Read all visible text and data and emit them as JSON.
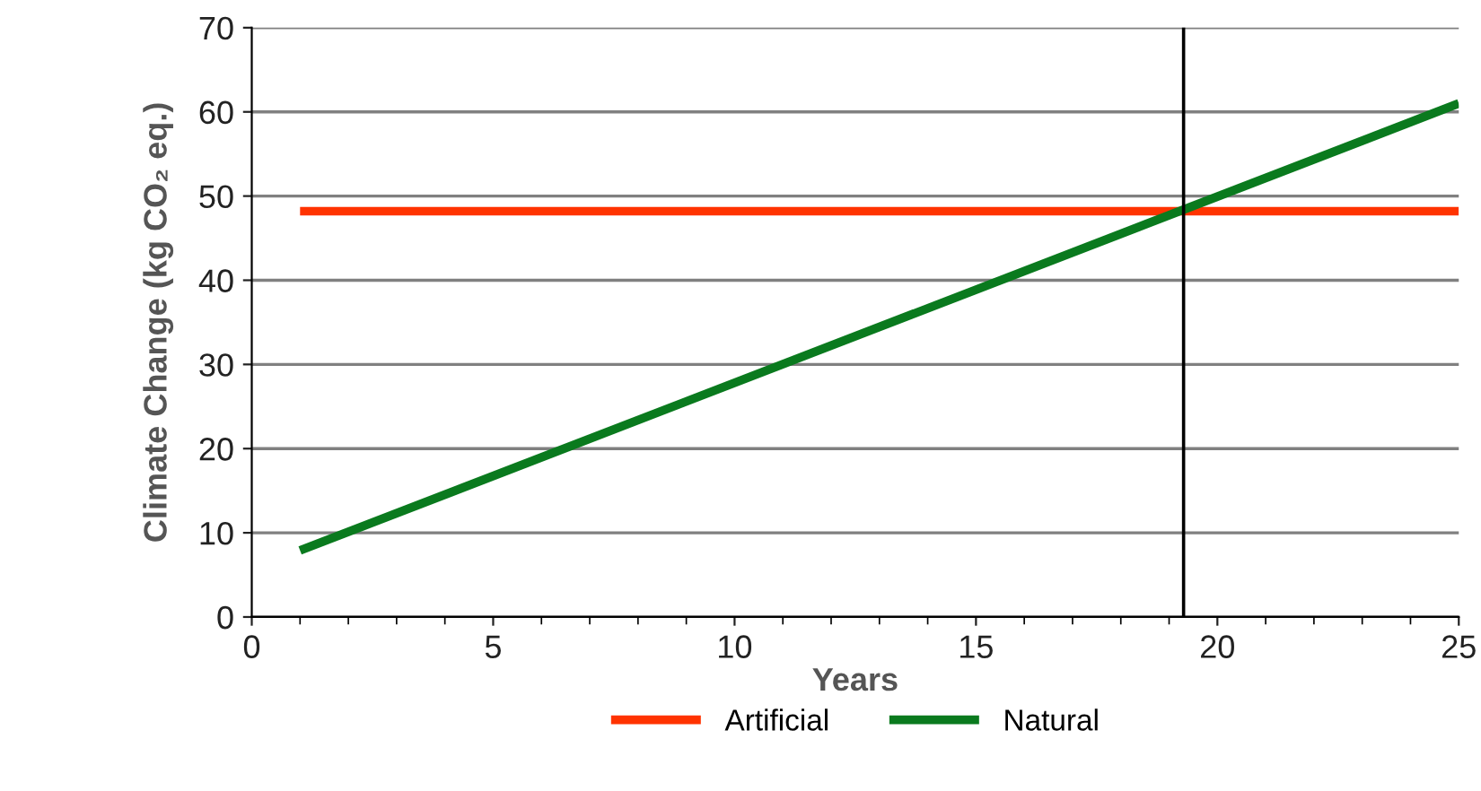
{
  "chart_data": {
    "type": "line",
    "xlabel": "Years",
    "ylabel": "Climate Change (kg CO₂ eq.)",
    "series": [
      {
        "name": "Artificial",
        "color": "#ff3300",
        "values": [
          48.2,
          48.2
        ]
      },
      {
        "name": "Natural",
        "color": "#0a7a1e",
        "values": [
          7.9,
          61.0
        ]
      }
    ],
    "x": [
      1,
      25
    ],
    "xlim": [
      0,
      25
    ],
    "xticks": [
      0,
      5,
      10,
      15,
      20,
      25
    ],
    "ylim": [
      0,
      70
    ],
    "yticks": [
      0,
      10,
      20,
      30,
      40,
      50,
      60,
      70
    ],
    "grid": "y",
    "legend": "bottom",
    "marker": "none",
    "line_style": "solid",
    "ref_lines": [
      {
        "axis": "x",
        "value": 19.3,
        "label": null,
        "color": "#000000"
      }
    ]
  }
}
